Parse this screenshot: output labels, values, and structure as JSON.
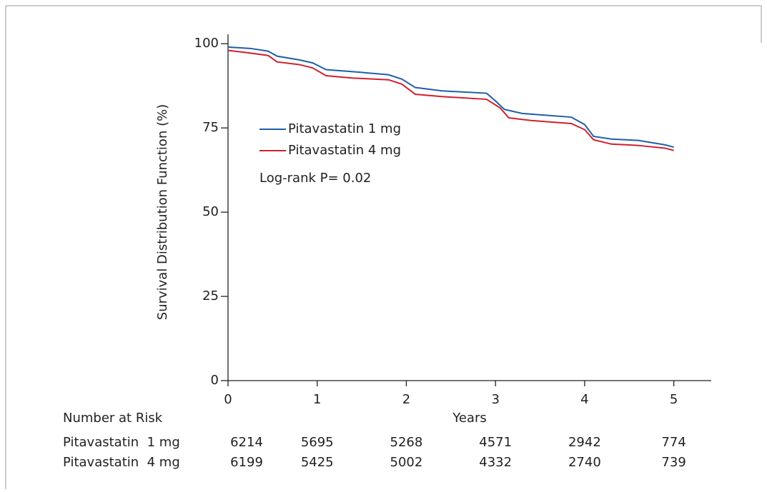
{
  "chart_data": {
    "type": "line",
    "ylabel": "Survival Distribution Function (%)",
    "xlabel": "Years",
    "annotation": "Log-rank P= 0.02",
    "xlim": [
      0,
      5.42
    ],
    "xticks": [
      0,
      1,
      2,
      3,
      4,
      5
    ],
    "ylim": [
      0,
      102.8
    ],
    "yticks": [
      0,
      25,
      50,
      75,
      100
    ],
    "series": [
      {
        "name": "Pitavastatin 1 mg",
        "color": "#1f5fa8",
        "x": [
          0,
          0.25,
          0.45,
          0.55,
          0.8,
          0.95,
          1.1,
          1.4,
          1.8,
          1.95,
          2.1,
          2.4,
          2.9,
          3.0,
          3.1,
          3.3,
          3.85,
          4.0,
          4.1,
          4.3,
          4.6,
          4.9,
          5.0
        ],
        "values": [
          99,
          98.6,
          97.8,
          96.3,
          95.2,
          94.3,
          92.3,
          91.7,
          90.8,
          89.5,
          87,
          86,
          85.3,
          83,
          80.5,
          79.3,
          78.2,
          76,
          72.5,
          71.7,
          71.3,
          70,
          69.3
        ]
      },
      {
        "name": "Pitavastatin 4 mg",
        "color": "#d0202e",
        "x": [
          0,
          0.2,
          0.45,
          0.55,
          0.8,
          0.95,
          1.1,
          1.4,
          1.8,
          1.95,
          2.1,
          2.4,
          2.9,
          3.05,
          3.15,
          3.4,
          3.85,
          4.0,
          4.1,
          4.3,
          4.6,
          4.9,
          5.0
        ],
        "values": [
          98,
          97.4,
          96.5,
          94.6,
          93.8,
          92.8,
          90.5,
          89.8,
          89.3,
          88,
          85,
          84.3,
          83.5,
          81,
          78,
          77.2,
          76.3,
          74.5,
          71.5,
          70.2,
          69.8,
          69,
          68.3
        ]
      }
    ],
    "risk_table": {
      "title": "Number at Risk",
      "rows": [
        {
          "label": "Pitavastatin  1 mg",
          "values": [
            6214,
            5695,
            5268,
            4571,
            2942,
            774
          ]
        },
        {
          "label": "Pitavastatin  4 mg",
          "values": [
            6199,
            5425,
            5002,
            4332,
            2740,
            739
          ]
        }
      ]
    }
  }
}
